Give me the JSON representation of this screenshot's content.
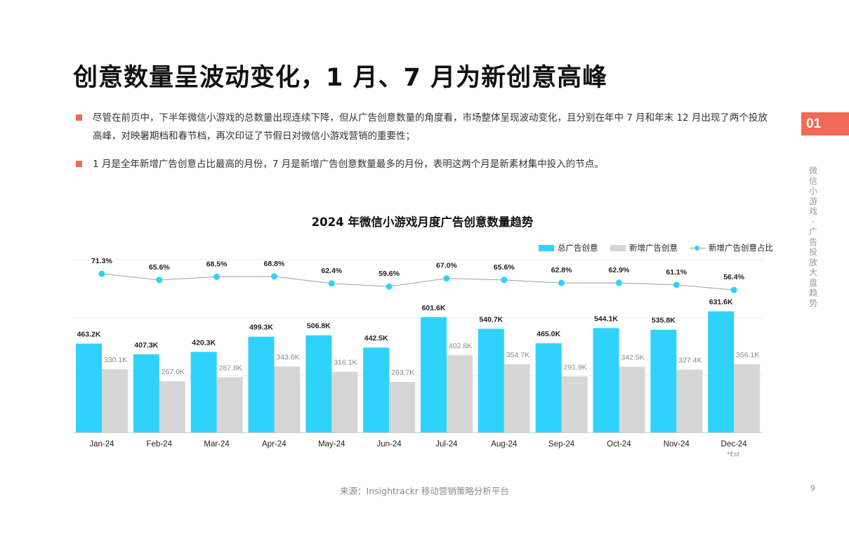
{
  "page": {
    "title": "创意数量呈波动变化，1 月、7 月为新创意高峰",
    "bullets": [
      "尽管在前页中，下半年微信小游戏的总数量出现连续下降，但从广告创意数量的角度看，市场整体呈现波动变化，且分别在年中 7 月和年末 12 月出现了两个投放高峰，对映暑期档和春节档，再次印证了节假日对微信小游戏营销的重要性；",
      "1 月是全年新增广告创意占比最高的月份，7 月是新增广告创意数量最多的月份，表明这两个月是新素材集中投入的节点。"
    ],
    "section_number": "01",
    "section_label": "微信小游戏 · 广告投放大盘趋势",
    "footnote": "*Est",
    "source": "来源：Insightrackr 移动营销策略分析平台",
    "page_number": "9",
    "colors": {
      "accent": "#f26a55",
      "total_bar": "#2fd2fb",
      "new_bar": "#d6d6d6",
      "ratio_line": "#9aa0a6",
      "ratio_marker": "#2fd2fb"
    }
  },
  "chart_data": {
    "type": "bar",
    "title": "2024 年微信小游戏月度广告创意数量趋势",
    "categories": [
      "Jan-24",
      "Feb-24",
      "Mar-24",
      "Apr-24",
      "May-24",
      "Jun-24",
      "Jul-24",
      "Aug-24",
      "Sep-24",
      "Oct-24",
      "Nov-24",
      "Dec-24"
    ],
    "series": [
      {
        "name": "总广告创意",
        "kind": "bar",
        "values": [
          463.2,
          407.3,
          420.3,
          499.3,
          506.8,
          442.5,
          601.6,
          540.7,
          465.0,
          544.1,
          535.8,
          631.6
        ],
        "labels": [
          "463.2K",
          "407.3K",
          "420.3K",
          "499.3K",
          "506.8K",
          "442.5K",
          "601.6K",
          "540.7K",
          "465.0K",
          "544.1K",
          "535.8K",
          "631.6K"
        ]
      },
      {
        "name": "新增广告创意",
        "kind": "bar",
        "values": [
          330.1,
          267.0,
          287.8,
          343.6,
          316.1,
          263.7,
          402.8,
          354.7,
          291.9,
          342.5,
          327.4,
          356.1
        ],
        "labels": [
          "330.1K",
          "267.0K",
          "287.8K",
          "343.6K",
          "316.1K",
          "263.7K",
          "402.8K",
          "354.7K",
          "291.9K",
          "342.5K",
          "327.4K",
          "356.1K"
        ]
      },
      {
        "name": "新增广告创意占比",
        "kind": "line",
        "values": [
          71.3,
          65.6,
          68.5,
          68.8,
          62.4,
          59.6,
          67.0,
          65.6,
          62.8,
          62.9,
          61.1,
          56.4
        ],
        "labels": [
          "71.3%",
          "65.6%",
          "68.5%",
          "68.8%",
          "62.4%",
          "59.6%",
          "67.0%",
          "65.6%",
          "62.8%",
          "62.9%",
          "61.1%",
          "56.4%"
        ]
      }
    ],
    "unit": "K",
    "legend_position": "top-right",
    "grid": true
  }
}
